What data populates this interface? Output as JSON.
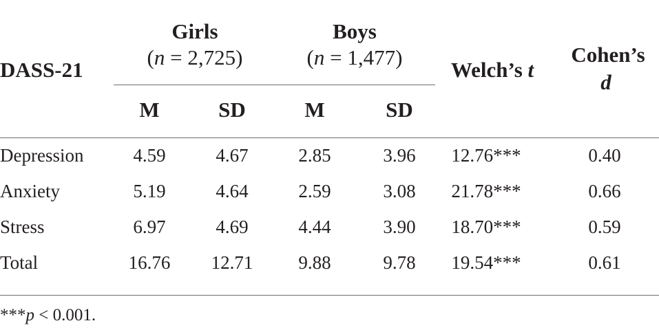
{
  "table": {
    "header": {
      "dass": "DASS-21",
      "girls_title": "Girls",
      "girls_n_open": "(",
      "girls_n_var": "n",
      "girls_n_rest": " = 2,725)",
      "boys_title": "Boys",
      "boys_n_open": "(",
      "boys_n_var": "n",
      "boys_n_rest": " = 1,477)",
      "welch_label": "Welch’s ",
      "welch_var": "t",
      "cohen_label": "Cohen’s",
      "cohen_var": "d",
      "girls_m": "M",
      "girls_sd": "SD",
      "boys_m": "M",
      "boys_sd": "SD"
    },
    "rows": [
      {
        "label": "Depression",
        "girls_m": "4.59",
        "girls_sd": "4.67",
        "boys_m": "2.85",
        "boys_sd": "3.96",
        "welch_t": "12.76***",
        "cohens_d": "0.40"
      },
      {
        "label": "Anxiety",
        "girls_m": "5.19",
        "girls_sd": "4.64",
        "boys_m": "2.59",
        "boys_sd": "3.08",
        "welch_t": "21.78***",
        "cohens_d": "0.66"
      },
      {
        "label": "Stress",
        "girls_m": "6.97",
        "girls_sd": "4.69",
        "boys_m": "4.44",
        "boys_sd": "3.90",
        "welch_t": "18.70***",
        "cohens_d": "0.59"
      },
      {
        "label": "Total",
        "girls_m": "16.76",
        "girls_sd": "12.71",
        "boys_m": "9.88",
        "boys_sd": "9.78",
        "welch_t": "19.54***",
        "cohens_d": "0.61"
      }
    ],
    "footnote": {
      "stars": "***",
      "var": "p",
      "rest": " < 0.001."
    }
  }
}
